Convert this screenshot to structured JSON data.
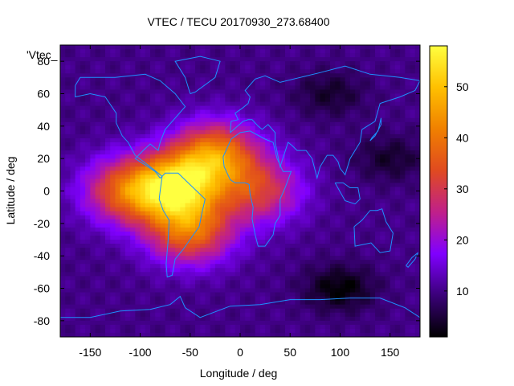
{
  "chart_data": {
    "type": "heatmap",
    "title": "VTEC / TECU 20170930_273.68400",
    "xlabel": "Longitude / deg",
    "ylabel": "Latitude / deg",
    "legend_entry": "'Vtec_",
    "xlim": [
      -180,
      180
    ],
    "ylim": [
      -90,
      90
    ],
    "x_ticks": [
      -150,
      -100,
      -50,
      0,
      50,
      100,
      150
    ],
    "y_ticks": [
      -80,
      -60,
      -40,
      -20,
      0,
      20,
      40,
      60,
      80
    ],
    "colorbar": {
      "range": [
        1,
        58
      ],
      "ticks": [
        10,
        20,
        30,
        40,
        50
      ],
      "palette": [
        "#000000",
        "#3a0078",
        "#8000ff",
        "#c0208a",
        "#e04a20",
        "#f08000",
        "#ffc000",
        "#ffff40"
      ]
    },
    "field_model": {
      "background_tecu": 10,
      "peaks": [
        {
          "lon": -65,
          "lat": 2,
          "tecu": 55
        },
        {
          "lon": -25,
          "lat": 22,
          "tecu": 45
        },
        {
          "lon": -115,
          "lat": 0,
          "tecu": 37
        },
        {
          "lon": 20,
          "lat": 0,
          "tecu": 32
        },
        {
          "lon": -50,
          "lat": -25,
          "tecu": 40
        }
      ],
      "depletions": [
        {
          "lon": 100,
          "lat": -60,
          "tecu": -9
        },
        {
          "lon": 90,
          "lat": 60,
          "tecu": -6
        },
        {
          "lon": 150,
          "lat": 20,
          "tecu": -6
        }
      ]
    }
  }
}
